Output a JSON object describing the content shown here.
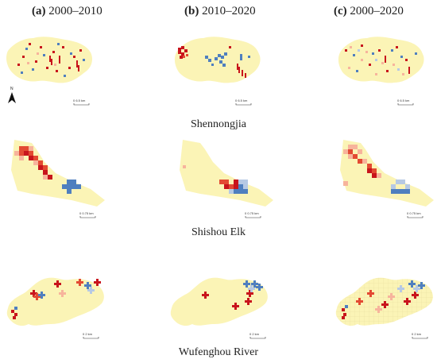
{
  "columns": [
    {
      "label": "(a)",
      "period": "2000–2010"
    },
    {
      "label": "(b)",
      "period": "2010–2020"
    },
    {
      "label": "(c)",
      "period": "2000–2020"
    }
  ],
  "regions": [
    {
      "name": "Shennongjia",
      "scale_text": "0 6.5 km"
    },
    {
      "name": "Shishou Elk",
      "scale_text": "0 0.75 km"
    },
    {
      "name": "Wufenghou River",
      "scale_text": "0 2 km"
    }
  ],
  "north_arrow": {
    "letter": "N"
  },
  "colors": {
    "base": "#fbf4b6",
    "red_dark": "#c8141c",
    "red": "#e34a33",
    "red_light": "#f7b49c",
    "blue": "#4f7fbf",
    "blue_light": "#b6c9e4"
  }
}
